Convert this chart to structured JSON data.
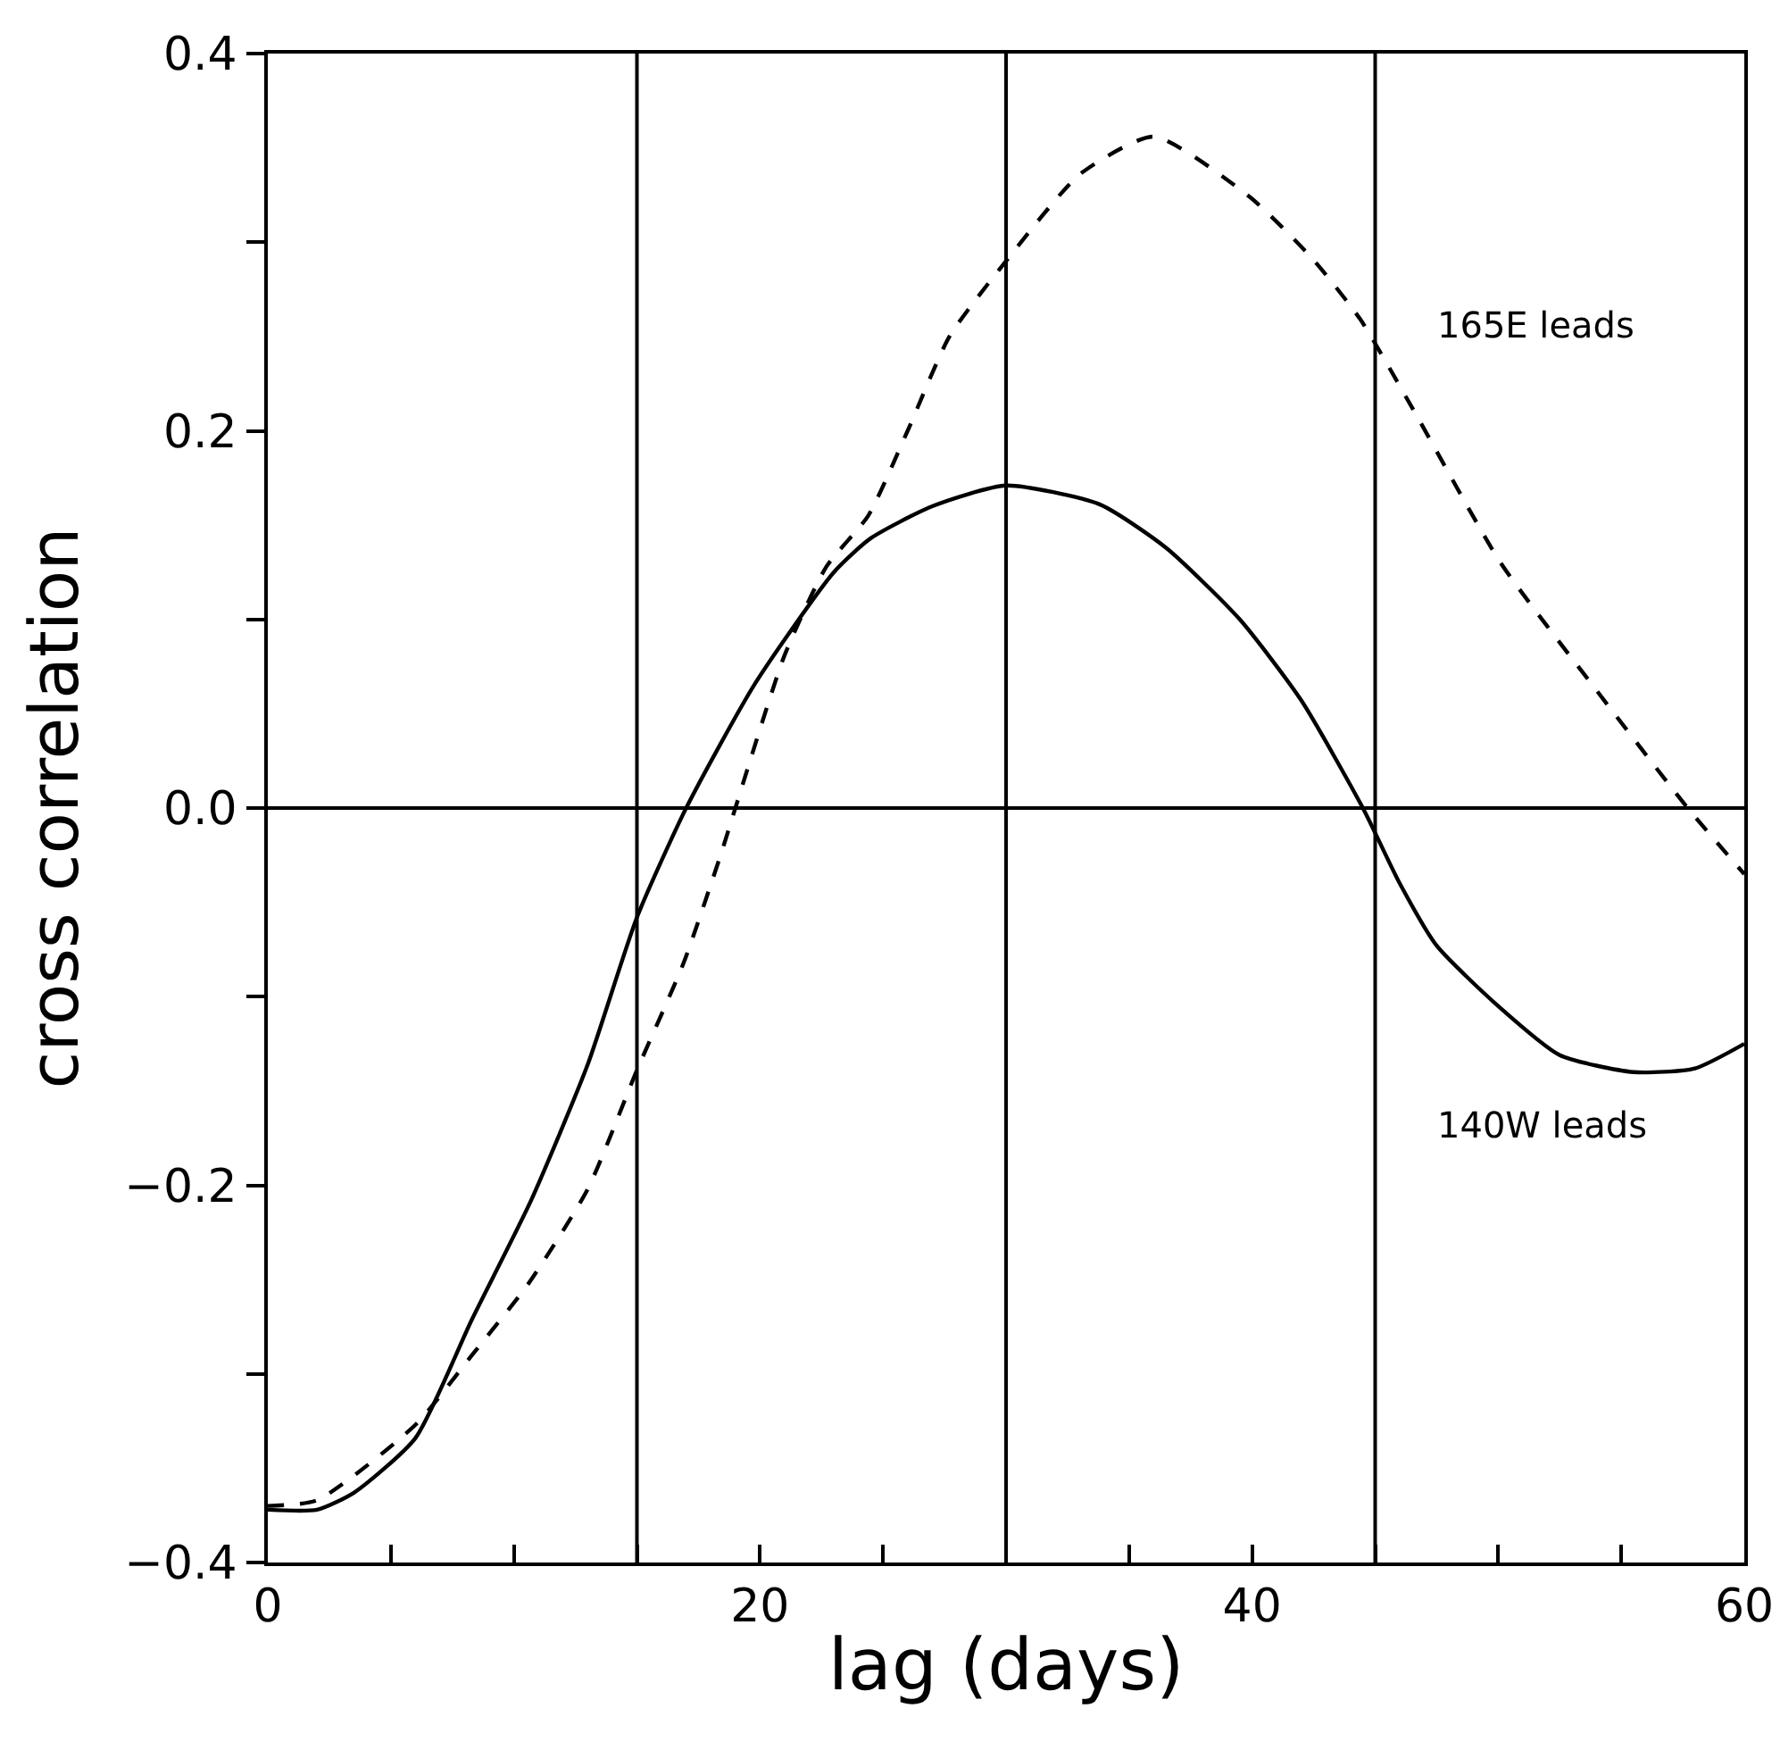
{
  "chart_data": {
    "type": "line",
    "xlabel": "lag (days)",
    "ylabel": "cross correlation",
    "xlim": [
      0,
      60
    ],
    "ylim": [
      -0.4,
      0.4
    ],
    "xticks": [
      0,
      {
        "value": 5,
        "label": null
      },
      {
        "value": 10,
        "label": null
      },
      {
        "value": 15,
        "label": null
      },
      20,
      {
        "value": 25,
        "label": null
      },
      {
        "value": 30,
        "label": null
      },
      {
        "value": 35,
        "label": null
      },
      40,
      {
        "value": 45,
        "label": null
      },
      {
        "value": 50,
        "label": null
      },
      {
        "value": 55,
        "label": null
      },
      60
    ],
    "yticks": [
      {
        "value": -0.4,
        "label": "−0.4"
      },
      {
        "value": -0.3,
        "label": null
      },
      {
        "value": -0.2,
        "label": "−0.2"
      },
      {
        "value": -0.1,
        "label": null
      },
      {
        "value": 0,
        "label": "0.0"
      },
      {
        "value": 0.1,
        "label": null
      },
      {
        "value": 0.2,
        "label": "0.2"
      },
      {
        "value": 0.3,
        "label": null
      },
      {
        "value": 0.4,
        "label": "0.4"
      }
    ],
    "grid": false,
    "legend": false,
    "ref_lines": [
      {
        "axis": "x",
        "value": 15,
        "color": "#000000"
      },
      {
        "axis": "x",
        "value": 30,
        "color": "#000000"
      },
      {
        "axis": "x",
        "value": 45,
        "color": "#000000"
      },
      {
        "axis": "y",
        "value": 0,
        "color": "#000000"
      }
    ],
    "series": [
      {
        "name": "140W leads",
        "color": "#000000",
        "line_style": "solid",
        "x": [
          0,
          2,
          3.5,
          6,
          8.3,
          10.7,
          13,
          15,
          17,
          19.8,
          23,
          24.5,
          27,
          30,
          33.8,
          36.5,
          39.5,
          42,
          44.5,
          46,
          47.5,
          50,
          52.5,
          55.5,
          58,
          60
        ],
        "values": [
          -0.372,
          -0.372,
          -0.363,
          -0.334,
          -0.271,
          -0.208,
          -0.136,
          -0.058,
          0.0,
          0.066,
          0.125,
          0.143,
          0.16,
          0.171,
          0.161,
          0.138,
          0.1,
          0.057,
          0.0,
          -0.04,
          -0.073,
          -0.105,
          -0.131,
          -0.14,
          -0.138,
          -0.125
        ]
      },
      {
        "name": "165E leads",
        "color": "#000000",
        "line_style": "dashed",
        "x": [
          0,
          2,
          6,
          8.3,
          10.6,
          13,
          15,
          16.9,
          18.4,
          19,
          21,
          22.7,
          24.4,
          26,
          27.7,
          30,
          33,
          36,
          39.9,
          42.4,
          44.4,
          46.6,
          50.1,
          53.9,
          57.7,
          60
        ],
        "values": [
          -0.37,
          -0.367,
          -0.327,
          -0.29,
          -0.252,
          -0.202,
          -0.139,
          -0.082,
          -0.025,
          0.0,
          0.081,
          0.128,
          0.155,
          0.2,
          0.25,
          0.29,
          0.336,
          0.356,
          0.324,
          0.292,
          0.259,
          0.21,
          0.13,
          0.064,
          0.0,
          -0.035
        ]
      }
    ]
  }
}
